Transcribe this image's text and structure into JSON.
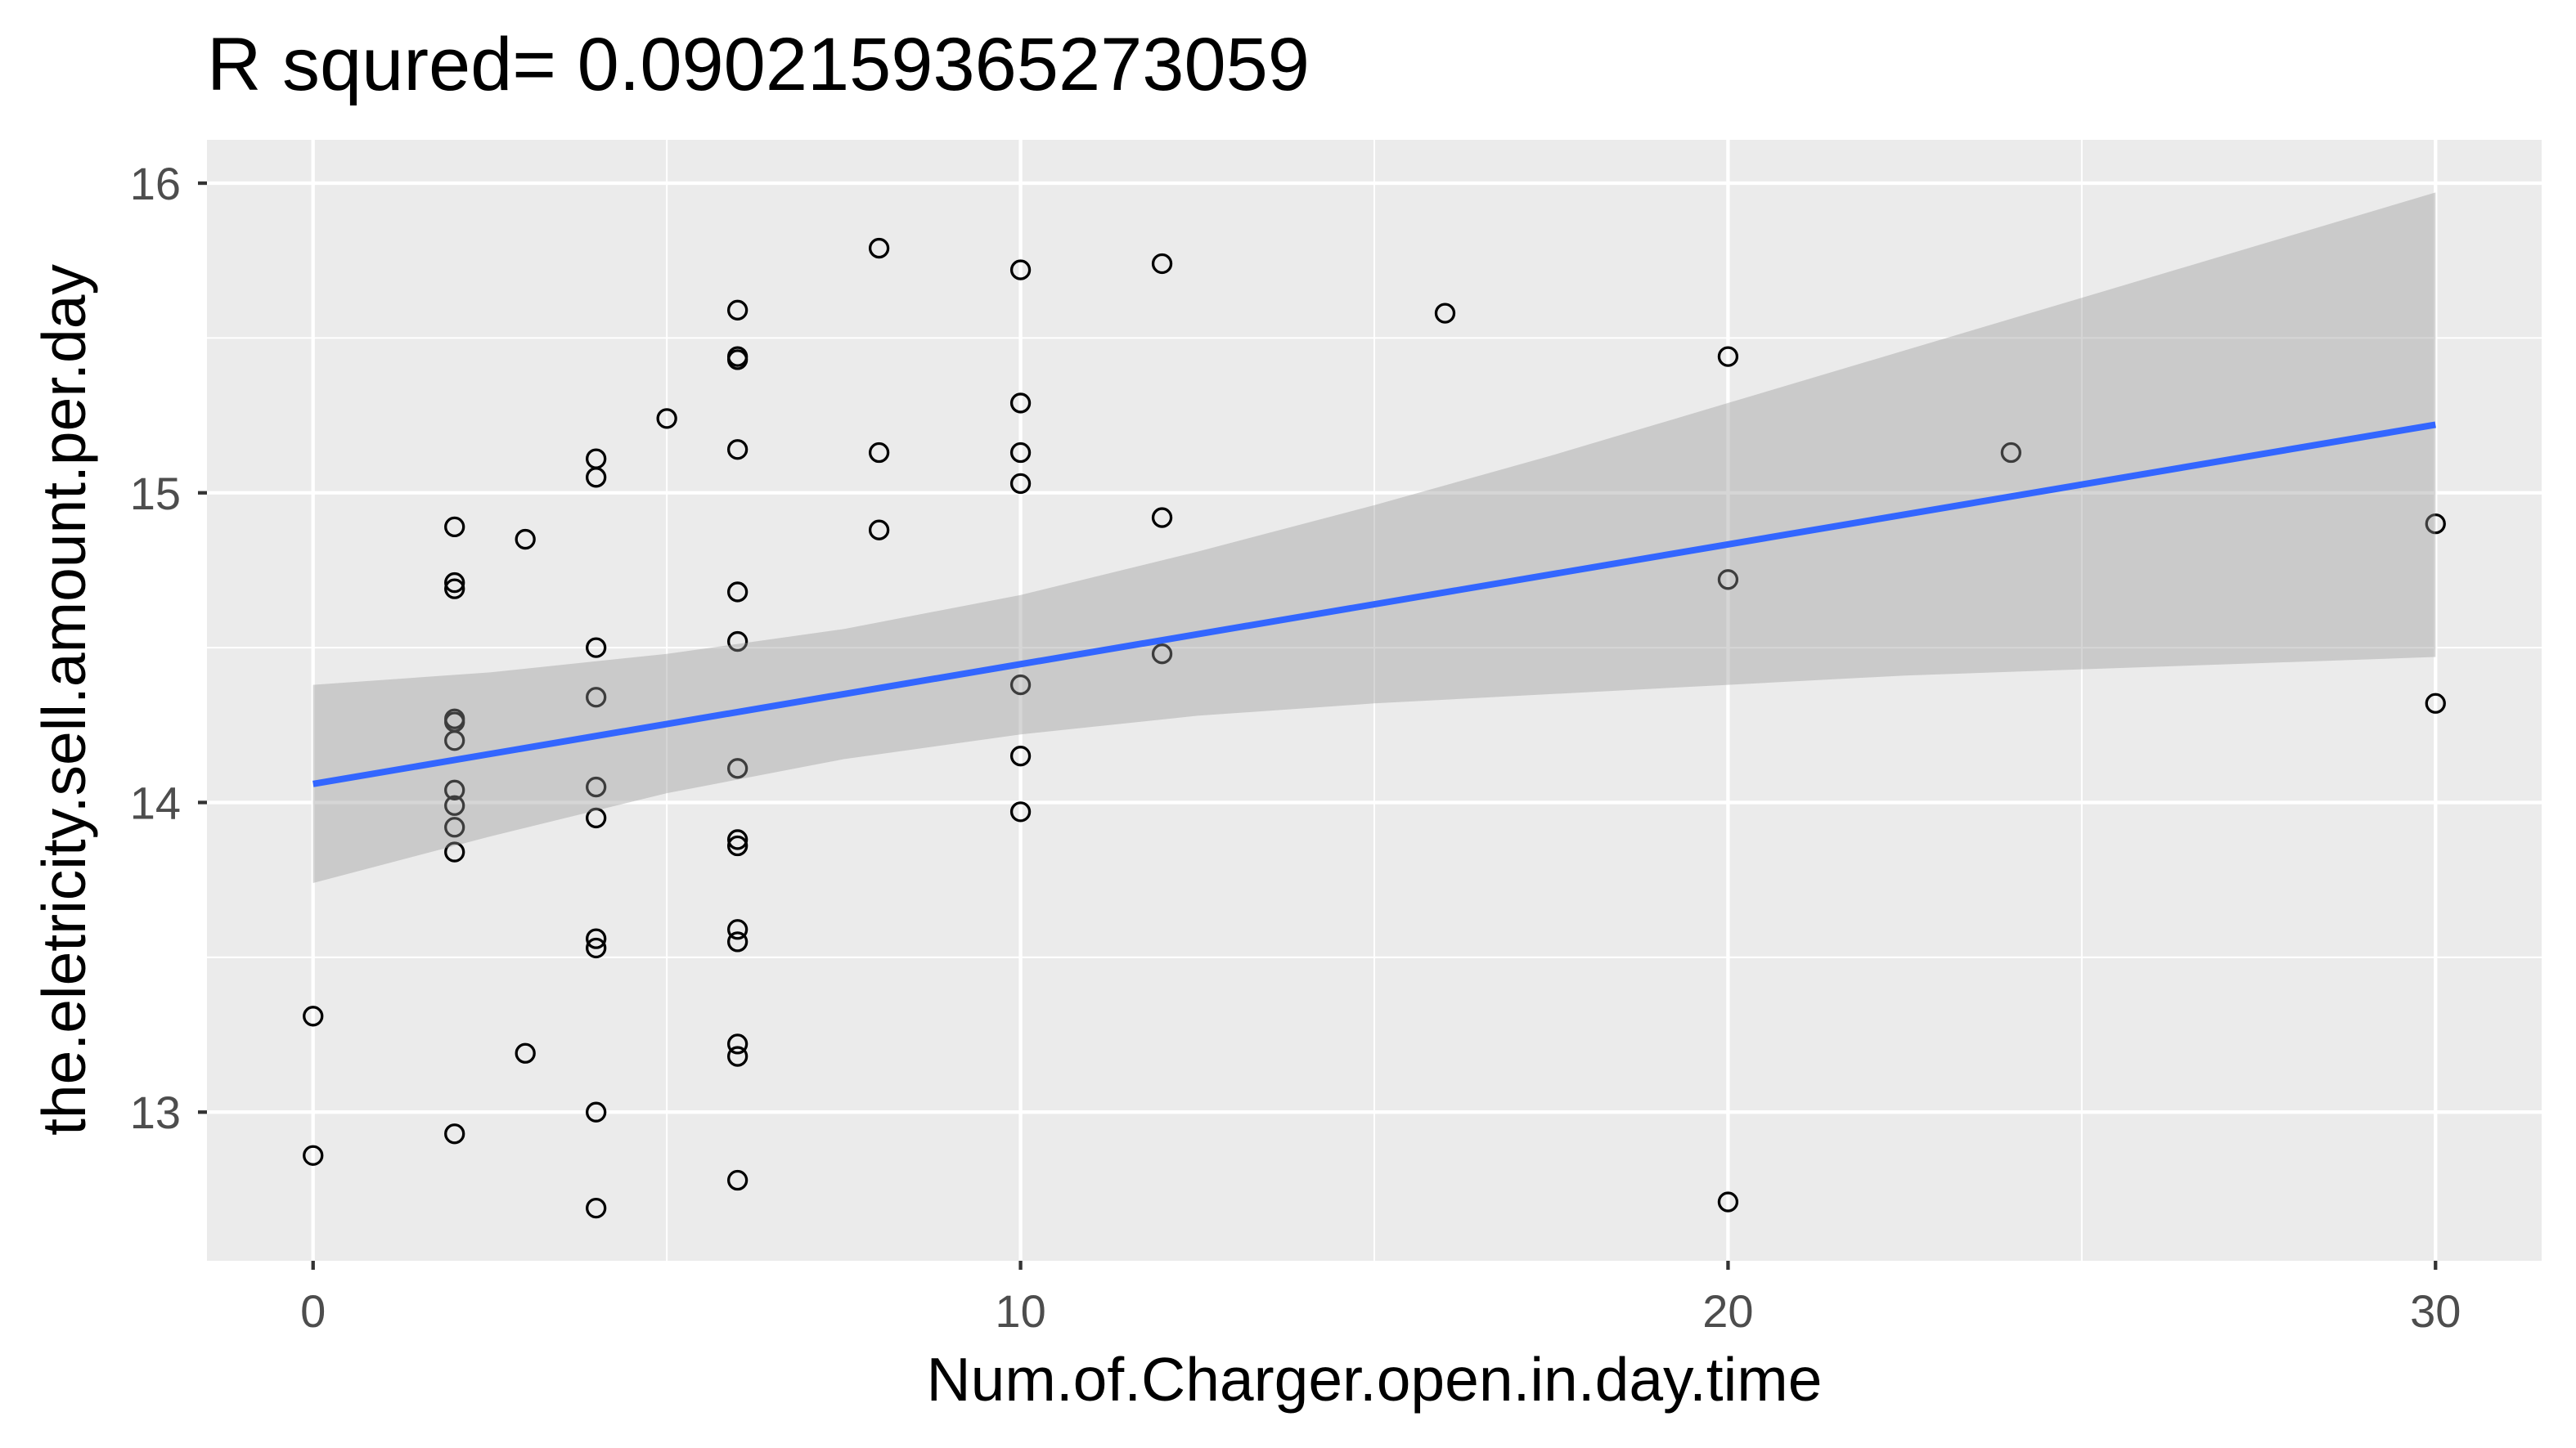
{
  "chart_data": {
    "type": "scatter",
    "title": "R squred= 0.0902159365273059",
    "xlabel": "Num.of.Charger.open.in.day.time",
    "ylabel": "the.eletricity.sell.amount.per.day",
    "xlim": [
      -1.5,
      31.5
    ],
    "ylim": [
      12.52,
      16.14
    ],
    "x_ticks": [
      0,
      10,
      20,
      30
    ],
    "y_ticks": [
      13,
      14,
      15,
      16
    ],
    "grid": true,
    "points": {
      "x": [
        0,
        0,
        2,
        2,
        2,
        2,
        2,
        2,
        2,
        2,
        2,
        2,
        2,
        3,
        3,
        4,
        4,
        4,
        4,
        4,
        4,
        4,
        4,
        4,
        4,
        5,
        6,
        6,
        6,
        6,
        6,
        6,
        6,
        6,
        6,
        6,
        6,
        6,
        6,
        6,
        8,
        8,
        8,
        10,
        10,
        10,
        10,
        10,
        10,
        10,
        12,
        12,
        12,
        16,
        20,
        20,
        20,
        24,
        30,
        30
      ],
      "y": [
        13.31,
        12.86,
        14.89,
        14.71,
        14.69,
        14.27,
        14.26,
        14.2,
        14.04,
        13.99,
        13.92,
        13.84,
        12.93,
        14.85,
        13.19,
        15.11,
        15.05,
        14.5,
        14.34,
        14.05,
        13.95,
        13.56,
        13.53,
        13.0,
        12.69,
        15.24,
        15.59,
        15.44,
        15.43,
        15.14,
        14.68,
        14.52,
        14.11,
        13.88,
        13.86,
        13.59,
        13.55,
        13.22,
        13.18,
        12.78,
        15.79,
        15.13,
        14.88,
        15.72,
        15.29,
        15.13,
        15.03,
        14.38,
        14.15,
        13.97,
        15.74,
        14.92,
        14.48,
        15.58,
        15.44,
        14.72,
        12.71,
        15.13,
        14.9,
        14.32
      ]
    },
    "fit_line": {
      "x": [
        0,
        30
      ],
      "y": [
        14.06,
        15.22
      ]
    },
    "confidence_band": {
      "x": [
        0,
        2.5,
        5,
        7.5,
        10,
        12.5,
        15,
        17.5,
        20,
        22.5,
        25,
        27.5,
        30
      ],
      "lower": [
        13.74,
        13.89,
        14.03,
        14.14,
        14.22,
        14.28,
        14.32,
        14.35,
        14.38,
        14.41,
        14.43,
        14.45,
        14.47
      ],
      "upper": [
        14.38,
        14.42,
        14.48,
        14.56,
        14.67,
        14.81,
        14.96,
        15.12,
        15.29,
        15.46,
        15.63,
        15.8,
        15.97
      ]
    },
    "colors": {
      "panel_background": "#EBEBEB",
      "grid": "#FFFFFF",
      "fit_line": "#3366FF",
      "band": "#999999",
      "point_stroke": "#000000",
      "tick_mark": "#333333",
      "tick_label": "#4D4D4D"
    }
  }
}
